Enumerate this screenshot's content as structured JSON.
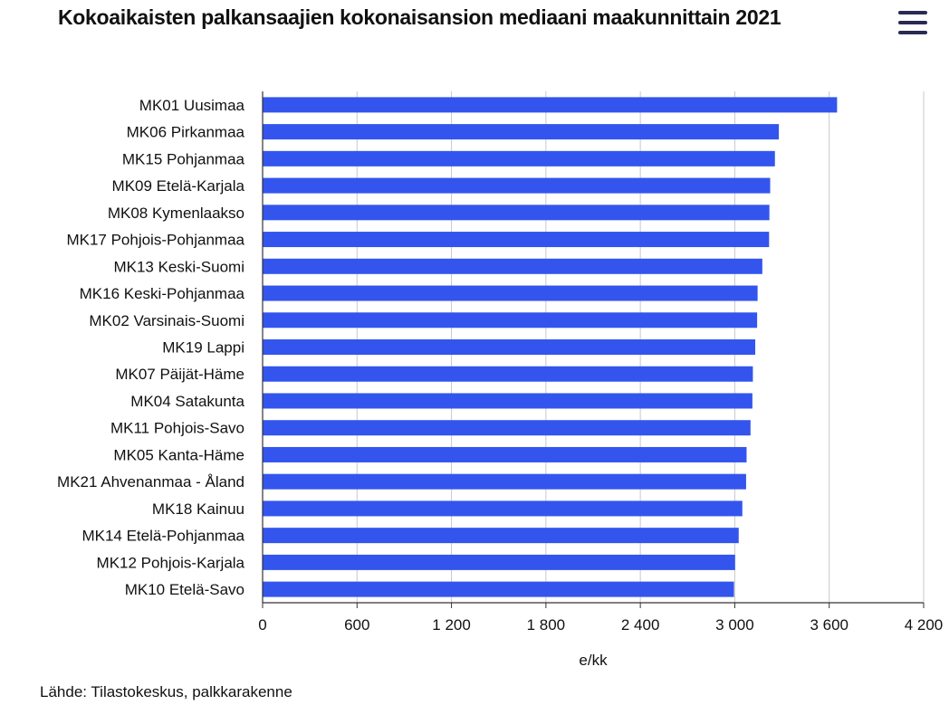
{
  "header": {
    "title": "Kokoaikaisten palkansaajien kokonaisansion mediaani maakunnittain 2021",
    "menu_icon": "hamburger-menu-icon"
  },
  "chart_data": {
    "type": "bar",
    "orientation": "horizontal",
    "categories": [
      "MK01 Uusimaa",
      "MK06 Pirkanmaa",
      "MK15 Pohjanmaa",
      "MK09 Etelä-Karjala",
      "MK08 Kymenlaakso",
      "MK17 Pohjois-Pohjanmaa",
      "MK13 Keski-Suomi",
      "MK16 Keski-Pohjanmaa",
      "MK02 Varsinais-Suomi",
      "MK19 Lappi",
      "MK07 Päijät-Häme",
      "MK04 Satakunta",
      "MK11 Pohjois-Savo",
      "MK05 Kanta-Häme",
      "MK21 Ahvenanmaa - Åland",
      "MK18 Kainuu",
      "MK14 Etelä-Pohjanmaa",
      "MK12 Pohjois-Karjala",
      "MK10 Etelä-Savo"
    ],
    "values": [
      3650,
      3280,
      3255,
      3225,
      3220,
      3218,
      3175,
      3145,
      3142,
      3130,
      3115,
      3112,
      3100,
      3075,
      3072,
      3048,
      3025,
      3002,
      2995
    ],
    "xlabel": "e/kk",
    "ylabel": "",
    "xlim": [
      0,
      4200
    ],
    "ticks": [
      0,
      600,
      1200,
      1800,
      2400,
      3000,
      3600,
      4200
    ],
    "tick_labels": [
      "0",
      "600",
      "1 200",
      "1 800",
      "2 400",
      "3 000",
      "3 600",
      "4 200"
    ],
    "grid": "vertical",
    "bar_color": "#3355ee",
    "grid_color": "#c8c8c8"
  },
  "footer": {
    "source": "Lähde: Tilastokeskus, palkkarakenne"
  }
}
